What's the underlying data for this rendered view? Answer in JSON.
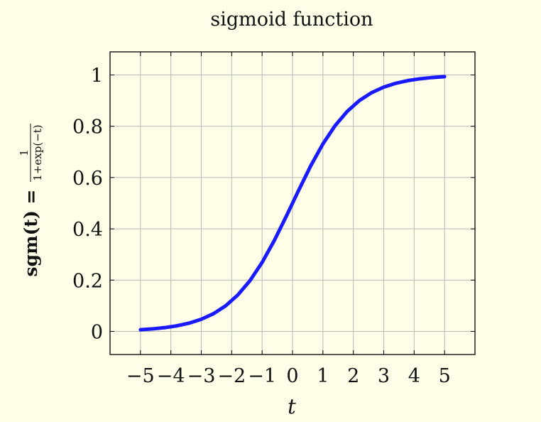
{
  "chart_data": {
    "type": "line",
    "title": "sigmoid function",
    "xlabel": "t",
    "ylabel": {
      "lhs": "sgm(t) =",
      "numerator": "1",
      "denominator": "1+exp(−t)"
    },
    "xlim": [
      -6,
      6
    ],
    "ylim": [
      -0.09,
      1.09
    ],
    "grid": true,
    "x_ticks": [
      -5,
      -4,
      -3,
      -2,
      -1,
      0,
      1,
      2,
      3,
      4,
      5
    ],
    "x_tick_labels": [
      "−5",
      "−4",
      "−3",
      "−2",
      "−1",
      "0",
      "1",
      "2",
      "3",
      "4",
      "5"
    ],
    "y_ticks": [
      0,
      0.2,
      0.4,
      0.6,
      0.8,
      1
    ],
    "y_tick_labels": [
      "0",
      "0.2",
      "0.4",
      "0.6",
      "0.8",
      "1"
    ],
    "series": [
      {
        "color": "#1a1aff",
        "x": [
          -5,
          -4.6,
          -4.2,
          -3.8,
          -3.4,
          -3,
          -2.6,
          -2.2,
          -1.8,
          -1.4,
          -1,
          -0.6,
          -0.2,
          0.2,
          0.6,
          1,
          1.4,
          1.8,
          2.2,
          2.6,
          3,
          3.4,
          3.8,
          4.2,
          4.6,
          5
        ],
        "y": [
          0.0067,
          0.0099,
          0.0148,
          0.0219,
          0.0323,
          0.0474,
          0.0691,
          0.0998,
          0.1419,
          0.1978,
          0.2689,
          0.3543,
          0.4502,
          0.5498,
          0.6457,
          0.7311,
          0.8022,
          0.8581,
          0.9002,
          0.9309,
          0.9526,
          0.9677,
          0.9781,
          0.9852,
          0.9901,
          0.9933
        ]
      }
    ]
  }
}
